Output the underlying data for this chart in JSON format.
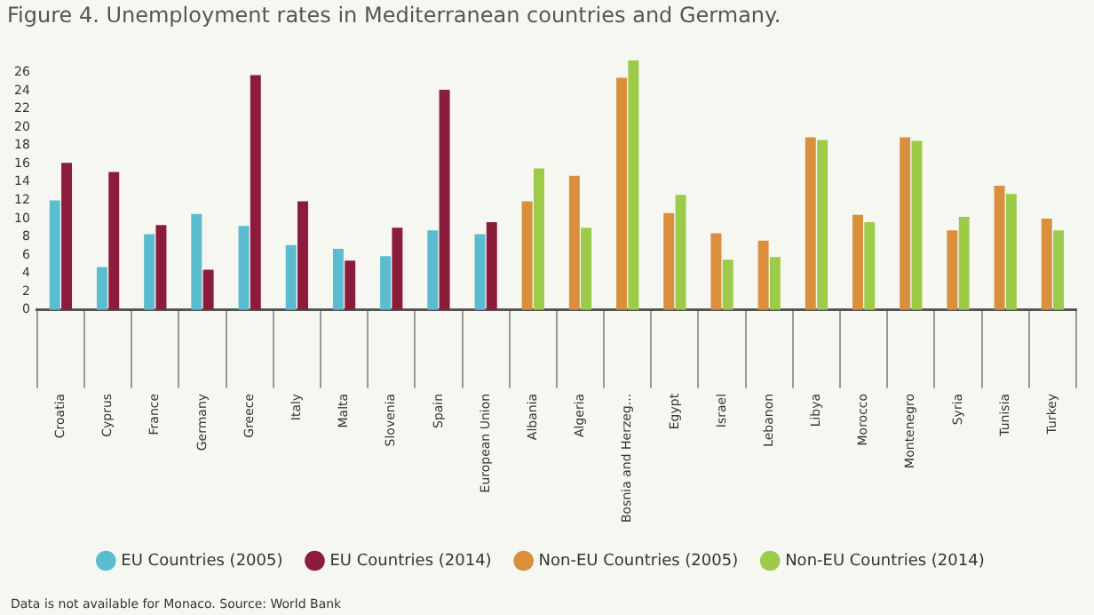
{
  "chart_data": {
    "type": "bar",
    "title": "Figure 4. Unemployment rates in Mediterranean countries and Germany.",
    "categories": [
      "Croatia",
      "Cyprus",
      "France",
      "Germany",
      "Greece",
      "Italy",
      "Malta",
      "Slovenia",
      "Spain",
      "European Union",
      "Albania",
      "Algeria",
      "Bosnia and Herzeg...",
      "Egypt",
      "Israel",
      "Lebanon",
      "Libya",
      "Morocco",
      "Montenegro",
      "Syria",
      "Tunisia",
      "Turkey"
    ],
    "series": [
      {
        "name": "EU Countries (2005)",
        "color": "#5bbccf",
        "values": [
          12.0,
          4.7,
          8.3,
          10.5,
          9.2,
          7.1,
          6.7,
          5.9,
          8.7,
          8.3,
          null,
          null,
          null,
          null,
          null,
          null,
          null,
          null,
          null,
          null,
          null,
          null
        ]
      },
      {
        "name": "EU Countries (2014)",
        "color": "#8c1c3c",
        "values": [
          16.1,
          15.1,
          9.3,
          4.4,
          25.7,
          11.9,
          5.4,
          9.0,
          24.1,
          9.6,
          null,
          null,
          null,
          null,
          null,
          null,
          null,
          null,
          null,
          null,
          null,
          null
        ]
      },
      {
        "name": "Non-EU Countries (2005)",
        "color": "#d98f3c",
        "values": [
          null,
          null,
          null,
          null,
          null,
          null,
          null,
          null,
          null,
          null,
          11.9,
          14.7,
          25.4,
          10.6,
          8.4,
          7.6,
          18.9,
          10.4,
          18.9,
          8.7,
          13.6,
          10.0
        ]
      },
      {
        "name": "Non-EU Countries (2014)",
        "color": "#9ccb4a",
        "values": [
          null,
          null,
          null,
          null,
          null,
          null,
          null,
          null,
          null,
          null,
          15.5,
          9.0,
          27.3,
          12.6,
          5.5,
          5.8,
          18.6,
          9.6,
          18.5,
          10.2,
          12.7,
          8.7
        ]
      }
    ],
    "ylim": [
      0,
      28
    ],
    "yticks": [
      0,
      2,
      4,
      6,
      8,
      10,
      12,
      14,
      16,
      18,
      20,
      22,
      24,
      26
    ],
    "grid": false,
    "legend": "bottom",
    "annotations": [
      "Data is not available for Monaco. Source: World Bank"
    ]
  }
}
